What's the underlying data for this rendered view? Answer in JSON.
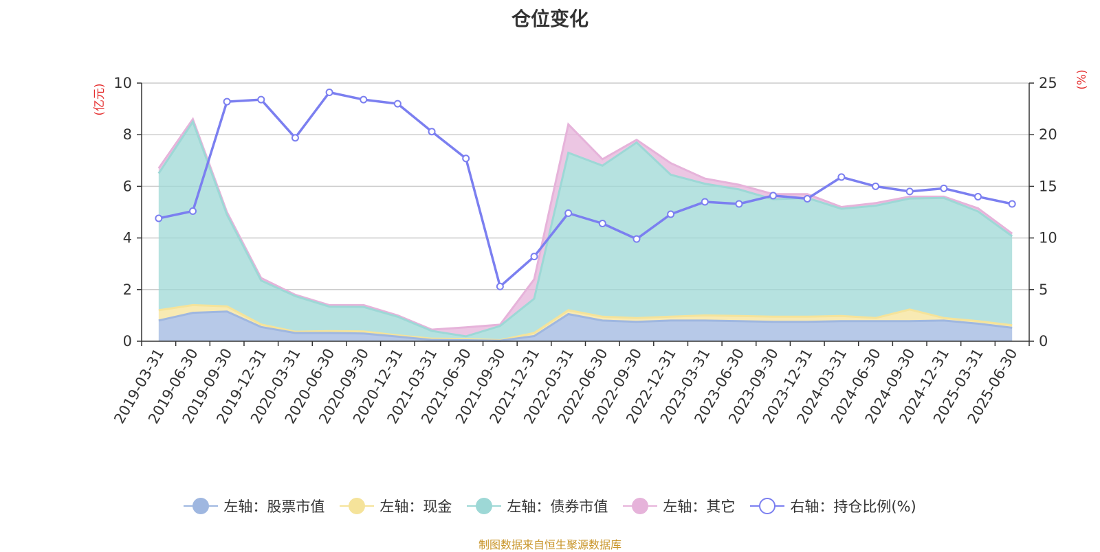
{
  "title": "仓位变化",
  "footer": "制图数据来自恒生聚源数据库",
  "colors": {
    "stock": "#9fb7e0",
    "cash": "#f5e39a",
    "bond": "#9dd8d6",
    "other": "#e6b3da",
    "ratio": "#7b7ff0",
    "unit": "#e53030"
  },
  "chart_data": {
    "type": "area",
    "title": "仓位变化",
    "y_left_label": "(亿元)",
    "y_right_label": "(%)",
    "y_left_lim": [
      0,
      10
    ],
    "y_left_ticks": [
      "0",
      "2",
      "4",
      "6",
      "8",
      "10"
    ],
    "y_right_lim": [
      0,
      25
    ],
    "y_right_ticks": [
      "0",
      "5",
      "10",
      "15",
      "20",
      "25"
    ],
    "grid": true,
    "legend_position": "bottom",
    "x": [
      "2019-03-31",
      "2019-06-30",
      "2019-09-30",
      "2019-12-31",
      "2020-03-31",
      "2020-06-30",
      "2020-09-30",
      "2020-12-31",
      "2021-03-31",
      "2021-06-30",
      "2021-09-30",
      "2021-12-31",
      "2022-03-31",
      "2022-06-30",
      "2022-09-30",
      "2022-12-31",
      "2023-03-31",
      "2023-06-30",
      "2023-09-30",
      "2023-12-31",
      "2024-03-31",
      "2024-06-30",
      "2024-09-30",
      "2024-12-31",
      "2025-03-31",
      "2025-06-30"
    ],
    "series": [
      {
        "name": "左轴：股票市值",
        "axis": "left",
        "stack": true,
        "values": [
          0.8,
          1.1,
          1.15,
          0.55,
          0.32,
          0.32,
          0.3,
          0.18,
          0.05,
          0.04,
          0.02,
          0.2,
          1.05,
          0.8,
          0.75,
          0.8,
          0.8,
          0.78,
          0.75,
          0.75,
          0.78,
          0.78,
          0.78,
          0.8,
          0.68,
          0.52
        ]
      },
      {
        "name": "左轴：现金",
        "axis": "left",
        "stack": true,
        "values": [
          0.4,
          0.3,
          0.2,
          0.1,
          0.05,
          0.07,
          0.08,
          0.05,
          0.05,
          0.05,
          0.02,
          0.12,
          0.15,
          0.15,
          0.15,
          0.15,
          0.2,
          0.2,
          0.2,
          0.2,
          0.2,
          0.12,
          0.45,
          0.1,
          0.1,
          0.1
        ]
      },
      {
        "name": "左轴：债券市值",
        "axis": "left",
        "stack": true,
        "values": [
          5.3,
          7.1,
          3.55,
          1.7,
          1.38,
          0.95,
          0.95,
          0.72,
          0.3,
          0.1,
          0.55,
          1.33,
          6.1,
          5.85,
          6.8,
          5.5,
          5.1,
          4.9,
          4.55,
          4.6,
          4.15,
          4.35,
          4.3,
          4.65,
          4.25,
          3.45
        ]
      },
      {
        "name": "左轴：其它",
        "axis": "left",
        "stack": true,
        "values": [
          0.2,
          0.1,
          0.1,
          0.1,
          0.05,
          0.06,
          0.07,
          0.05,
          0.05,
          0.35,
          0.05,
          0.75,
          1.1,
          0.25,
          0.1,
          0.45,
          0.2,
          0.18,
          0.2,
          0.15,
          0.07,
          0.1,
          0.07,
          0.05,
          0.12,
          0.1
        ]
      },
      {
        "name": "右轴：持仓比例(%)",
        "axis": "right",
        "stack": false,
        "values": [
          11.9,
          12.6,
          23.2,
          23.4,
          19.7,
          24.1,
          23.4,
          23.0,
          20.3,
          17.7,
          5.3,
          8.2,
          12.4,
          11.4,
          9.9,
          12.3,
          13.5,
          13.3,
          14.1,
          13.8,
          15.9,
          15.0,
          14.5,
          14.8,
          14.0,
          13.3
        ]
      }
    ]
  }
}
